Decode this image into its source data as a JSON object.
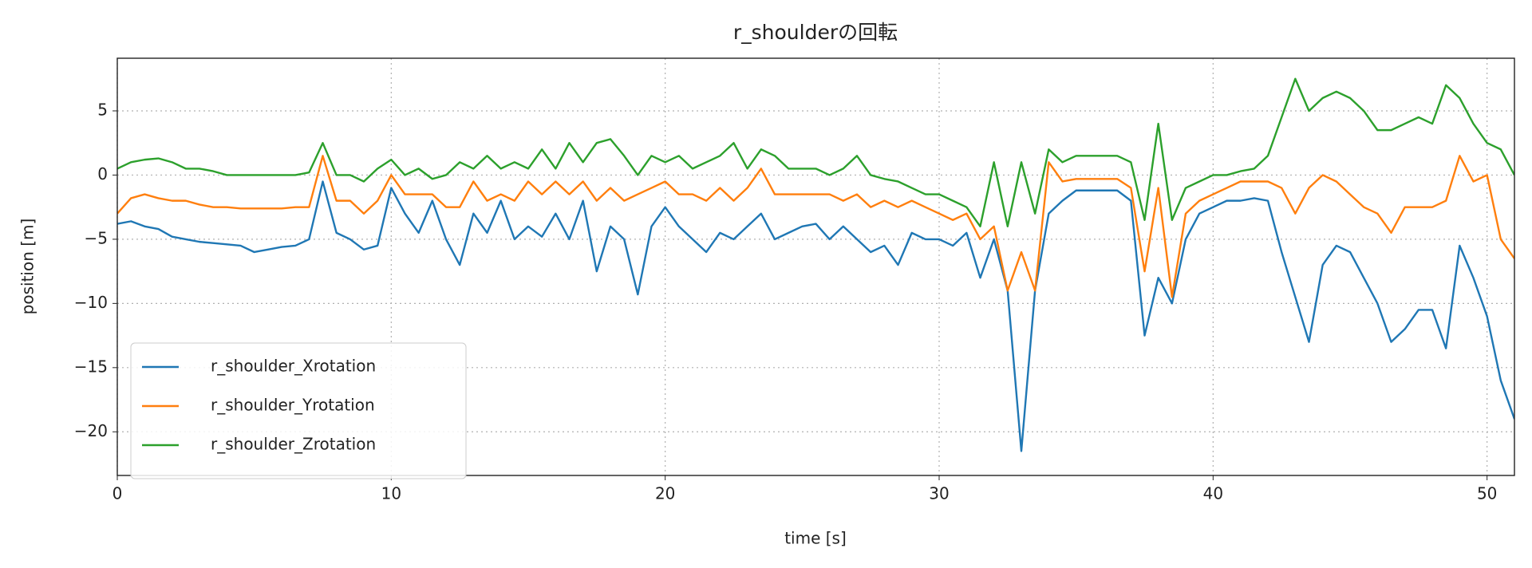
{
  "chart_data": {
    "type": "line",
    "title": "r_shoulderの回転",
    "x_label": "time [s]",
    "y_label": "position [m]",
    "x": [
      0,
      0.5,
      1,
      1.5,
      2,
      2.5,
      3,
      3.5,
      4,
      4.5,
      5,
      5.5,
      6,
      6.5,
      7,
      7.5,
      8,
      8.5,
      9,
      9.5,
      10,
      10.5,
      11,
      11.5,
      12,
      12.5,
      13,
      13.5,
      14,
      14.5,
      15,
      15.5,
      16,
      16.5,
      17,
      17.5,
      18,
      18.5,
      19,
      19.5,
      20,
      20.5,
      21,
      21.5,
      22,
      22.5,
      23,
      23.5,
      24,
      24.5,
      25,
      25.5,
      26,
      26.5,
      27,
      27.5,
      28,
      28.5,
      29,
      29.5,
      30,
      30.5,
      31,
      31.5,
      32,
      32.5,
      33,
      33.5,
      34,
      34.5,
      35,
      35.5,
      36,
      36.5,
      37,
      37.5,
      38,
      38.5,
      39,
      39.5,
      40,
      40.5,
      41,
      41.5,
      42,
      42.5,
      43,
      43.5,
      44,
      44.5,
      45,
      45.5,
      46,
      46.5,
      47,
      47.5,
      48,
      48.5,
      49,
      49.5,
      50,
      50.5,
      51
    ],
    "series": [
      {
        "name": "r_shoulder_Xrotation",
        "color": "#1f77b4",
        "values": [
          -3.8,
          -3.6,
          -4,
          -4.2,
          -4.8,
          -5,
          -5.2,
          -5.3,
          -5.4,
          -5.5,
          -6,
          -5.8,
          -5.6,
          -5.5,
          -5,
          -0.5,
          -4.5,
          -5,
          -5.8,
          -5.5,
          -1,
          -3,
          -4.5,
          -2,
          -5,
          -7,
          -3,
          -4.5,
          -2,
          -5,
          -4,
          -4.8,
          -3,
          -5,
          -2,
          -7.5,
          -4,
          -5,
          -9.3,
          -4,
          -2.5,
          -4,
          -5,
          -6,
          -4.5,
          -5,
          -4,
          -3,
          -5,
          -4.5,
          -4,
          -3.8,
          -5,
          -4,
          -5,
          -6,
          -5.5,
          -7,
          -4.5,
          -5,
          -5,
          -5.5,
          -4.5,
          -8,
          -5,
          -9,
          -21.5,
          -9,
          -3,
          -2,
          -1.2,
          -1.2,
          -1.2,
          -1.2,
          -2,
          -12.5,
          -8,
          -10,
          -5,
          -3,
          -2.5,
          -2,
          -2,
          -1.8,
          -2,
          -6,
          -9.5,
          -13,
          -7,
          -5.5,
          -6,
          -8,
          -10,
          -13,
          -12,
          -10.5,
          -10.5,
          -13.5,
          -5.5,
          -8,
          -11,
          -16,
          -19
        ]
      },
      {
        "name": "r_shoulder_Yrotation",
        "color": "#ff7f0e",
        "values": [
          -3,
          -1.8,
          -1.5,
          -1.8,
          -2,
          -2,
          -2.3,
          -2.5,
          -2.5,
          -2.6,
          -2.6,
          -2.6,
          -2.6,
          -2.5,
          -2.5,
          1.5,
          -2,
          -2,
          -3,
          -2,
          0,
          -1.5,
          -1.5,
          -1.5,
          -2.5,
          -2.5,
          -0.5,
          -2,
          -1.5,
          -2,
          -0.5,
          -1.5,
          -0.5,
          -1.5,
          -0.5,
          -2,
          -1,
          -2,
          -1.5,
          -1,
          -0.5,
          -1.5,
          -1.5,
          -2,
          -1,
          -2,
          -1,
          0.5,
          -1.5,
          -1.5,
          -1.5,
          -1.5,
          -1.5,
          -2,
          -1.5,
          -2.5,
          -2,
          -2.5,
          -2,
          -2.5,
          -3,
          -3.5,
          -3,
          -5,
          -4,
          -9,
          -6,
          -9,
          1,
          -0.5,
          -0.3,
          -0.3,
          -0.3,
          -0.3,
          -1,
          -7.5,
          -1,
          -9.5,
          -3,
          -2,
          -1.5,
          -1,
          -0.5,
          -0.5,
          -0.5,
          -1,
          -3,
          -1,
          0,
          -0.5,
          -1.5,
          -2.5,
          -3,
          -4.5,
          -2.5,
          -2.5,
          -2.5,
          -2,
          1.5,
          -0.5,
          0,
          -5,
          -6.5
        ]
      },
      {
        "name": "r_shoulder_Zrotation",
        "color": "#2ca02c",
        "values": [
          0.5,
          1,
          1.2,
          1.3,
          1,
          0.5,
          0.5,
          0.3,
          0,
          0,
          0,
          0,
          0,
          0,
          0.2,
          2.5,
          0,
          0,
          -0.5,
          0.5,
          1.2,
          0,
          0.5,
          -0.3,
          0,
          1,
          0.5,
          1.5,
          0.5,
          1,
          0.5,
          2,
          0.5,
          2.5,
          1,
          2.5,
          2.8,
          1.5,
          0,
          1.5,
          1,
          1.5,
          0.5,
          1,
          1.5,
          2.5,
          0.5,
          2,
          1.5,
          0.5,
          0.5,
          0.5,
          0,
          0.5,
          1.5,
          0,
          -0.3,
          -0.5,
          -1,
          -1.5,
          -1.5,
          -2,
          -2.5,
          -4,
          1,
          -4,
          1,
          -3,
          2,
          1,
          1.5,
          1.5,
          1.5,
          1.5,
          1,
          -3.5,
          4,
          -3.5,
          -1,
          -0.5,
          0,
          0,
          0.3,
          0.5,
          1.5,
          4.5,
          7.5,
          5,
          6,
          6.5,
          6,
          5,
          3.5,
          3.5,
          4,
          4.5,
          4,
          7,
          6,
          4,
          2.5,
          2,
          0
        ]
      }
    ],
    "xlim": [
      0,
      51
    ],
    "ylim": [
      -23.4,
      9.1
    ],
    "xticks": [
      0,
      10,
      20,
      30,
      40,
      50
    ],
    "yticks": [
      {
        "value": -20,
        "label": "−20"
      },
      {
        "value": -15,
        "label": "−15"
      },
      {
        "value": -10,
        "label": "−10"
      },
      {
        "value": -5,
        "label": "−5"
      },
      0,
      5
    ],
    "grid": true,
    "legend": "lower left"
  }
}
